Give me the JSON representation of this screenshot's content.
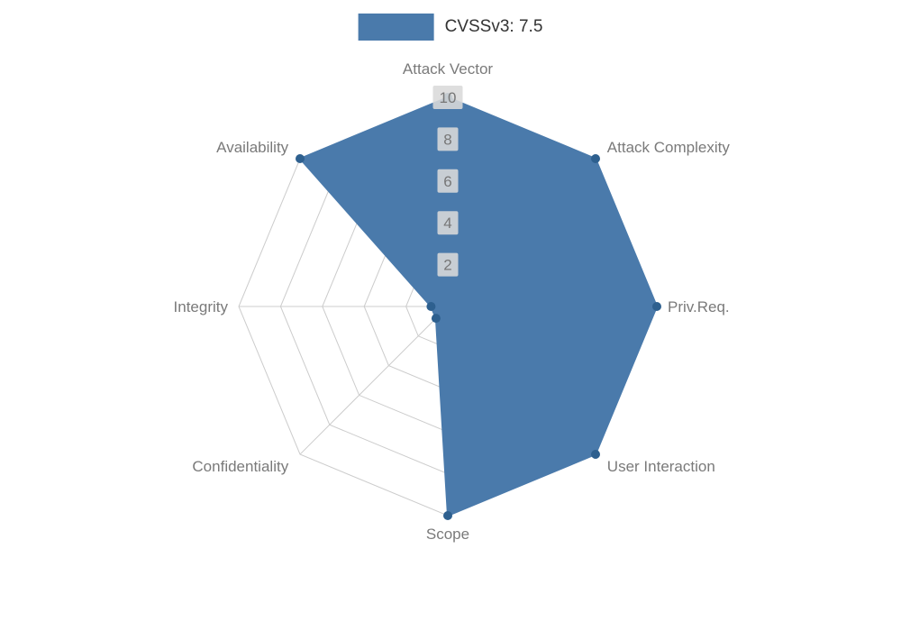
{
  "chart_data": {
    "type": "radar",
    "title": "CVSSv3: 7.5",
    "legend_position": "top-center",
    "categories": [
      "Attack Vector",
      "Attack Complexity",
      "Priv.Req.",
      "User Interaction",
      "Scope",
      "Confidentiality",
      "Integrity",
      "Availability"
    ],
    "series": [
      {
        "name": "CVSSv3: 7.5",
        "values": [
          10,
          10,
          10,
          10,
          10,
          0.8,
          0.8,
          10
        ]
      }
    ],
    "radial_ticks": [
      2,
      4,
      6,
      8,
      10
    ],
    "rmax": 10,
    "grid": true,
    "colors": {
      "fill": "#4a7aab",
      "stroke": "#4a7aab",
      "marker": "#2e608f",
      "grid": "#cccccc",
      "tick_bg": "#d9d9d9",
      "tick_text": "#777777",
      "label_text": "#7a7a7a",
      "legend_text": "#333333"
    }
  }
}
